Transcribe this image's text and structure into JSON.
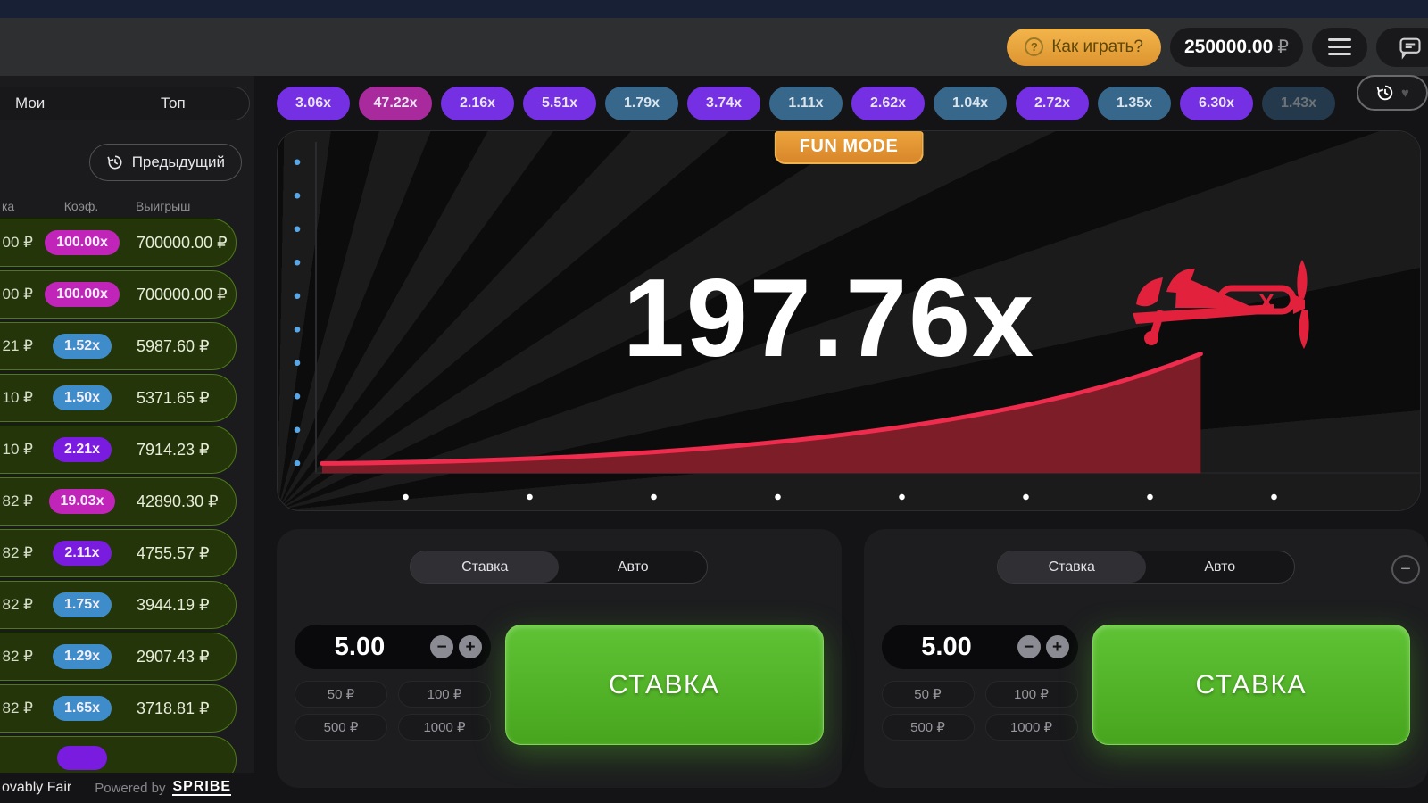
{
  "top_bar": {
    "help_button": "Как играть?",
    "balance_value": "250000.00",
    "balance_currency": "₽"
  },
  "history": {
    "items": [
      {
        "label": "3.06x",
        "color": "purple"
      },
      {
        "label": "47.22x",
        "color": "magenta"
      },
      {
        "label": "2.16x",
        "color": "purple"
      },
      {
        "label": "5.51x",
        "color": "purple"
      },
      {
        "label": "1.79x",
        "color": "blue"
      },
      {
        "label": "3.74x",
        "color": "purple"
      },
      {
        "label": "1.11x",
        "color": "blue"
      },
      {
        "label": "2.62x",
        "color": "purple"
      },
      {
        "label": "1.04x",
        "color": "blue"
      },
      {
        "label": "2.72x",
        "color": "purple"
      },
      {
        "label": "1.35x",
        "color": "blue"
      },
      {
        "label": "6.30x",
        "color": "purple"
      },
      {
        "label": "1.43x",
        "color": "blue",
        "faded": true
      }
    ]
  },
  "sidebar": {
    "tabs": [
      {
        "label": "Мои"
      },
      {
        "label": "Топ"
      }
    ],
    "previous_button": "Предыдущий",
    "columns": {
      "stake": "ка",
      "coef": "Коэф.",
      "win": "Выигрыш"
    },
    "rows": [
      {
        "stake": "00 ₽",
        "coef": "100.00x",
        "color": "magenta",
        "win": "700000.00 ₽"
      },
      {
        "stake": "00 ₽",
        "coef": "100.00x",
        "color": "magenta",
        "win": "700000.00 ₽"
      },
      {
        "stake": "21 ₽",
        "coef": "1.52x",
        "color": "blue",
        "win": "5987.60 ₽"
      },
      {
        "stake": "10 ₽",
        "coef": "1.50x",
        "color": "blue",
        "win": "5371.65 ₽"
      },
      {
        "stake": "10 ₽",
        "coef": "2.21x",
        "color": "purple",
        "win": "7914.23 ₽"
      },
      {
        "stake": "82 ₽",
        "coef": "19.03x",
        "color": "magenta",
        "win": "42890.30 ₽"
      },
      {
        "stake": "82 ₽",
        "coef": "2.11x",
        "color": "purple",
        "win": "4755.57 ₽"
      },
      {
        "stake": "82 ₽",
        "coef": "1.75x",
        "color": "blue",
        "win": "3944.19 ₽"
      },
      {
        "stake": "82 ₽",
        "coef": "1.29x",
        "color": "blue",
        "win": "2907.43 ₽"
      },
      {
        "stake": "82 ₽",
        "coef": "1.65x",
        "color": "blue",
        "win": "3718.81 ₽"
      },
      {
        "stake": "",
        "coef": "",
        "color": "purple",
        "win": ""
      }
    ],
    "footer": {
      "fair": "ovably Fair",
      "powered": "Powered by",
      "brand": "SPRIBE"
    }
  },
  "game": {
    "mode_badge": "FUN MODE",
    "multiplier": "197.76x"
  },
  "bet_panels": {
    "quick_amounts": [
      "50 ₽",
      "100 ₽",
      "500 ₽",
      "1000 ₽"
    ],
    "panels": [
      {
        "tabs": [
          "Ставка",
          "Авто"
        ],
        "active_tab": "Ставка",
        "amount": "5.00",
        "button": "СТАВКА"
      },
      {
        "tabs": [
          "Ставка",
          "Авто"
        ],
        "active_tab": "Ставка",
        "amount": "5.00",
        "button": "СТАВКА"
      }
    ]
  },
  "colors": {
    "accent_green": "#4fb923",
    "accent_orange": "#e09a35",
    "history_purple": "#7430e2",
    "history_magenta": "#a82a9c",
    "history_blue": "#38678c",
    "row_blue": "#3e8cc9",
    "row_purple": "#7a1be0",
    "row_magenta": "#c024b8",
    "curve_red": "#ef2b4e",
    "win_row_green": "#243509"
  }
}
